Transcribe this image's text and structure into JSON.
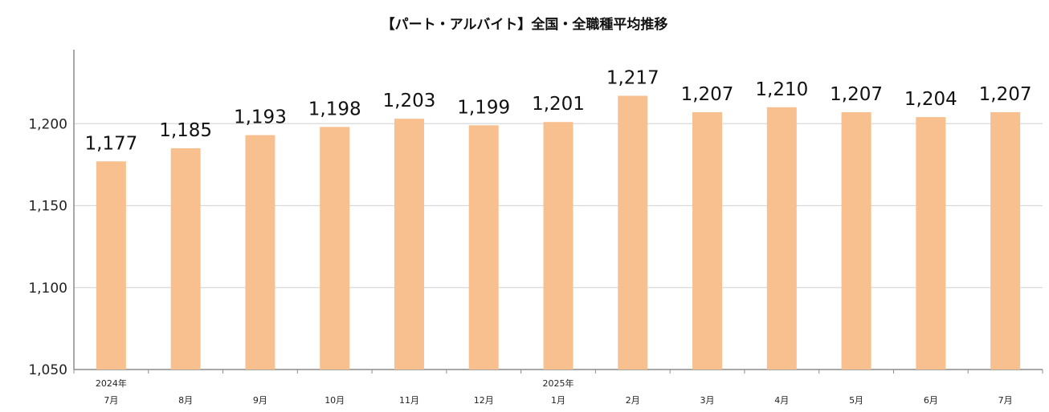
{
  "chart_data": {
    "type": "bar",
    "title": "【パート・アルバイト】全国・全職種平均推移",
    "xlabel": "",
    "ylabel": "",
    "categories": [
      {
        "year": "2024年",
        "month": "7月"
      },
      {
        "year": "",
        "month": "8月"
      },
      {
        "year": "",
        "month": "9月"
      },
      {
        "year": "",
        "month": "10月"
      },
      {
        "year": "",
        "month": "11月"
      },
      {
        "year": "",
        "month": "12月"
      },
      {
        "year": "2025年",
        "month": "1月"
      },
      {
        "year": "",
        "month": "2月"
      },
      {
        "year": "",
        "month": "3月"
      },
      {
        "year": "",
        "month": "4月"
      },
      {
        "year": "",
        "month": "5月"
      },
      {
        "year": "",
        "month": "6月"
      },
      {
        "year": "",
        "month": "7月"
      }
    ],
    "values": [
      1177,
      1185,
      1193,
      1198,
      1203,
      1199,
      1201,
      1217,
      1207,
      1210,
      1207,
      1204,
      1207
    ],
    "value_labels": [
      "1,177",
      "1,185",
      "1,193",
      "1,198",
      "1,203",
      "1,199",
      "1,201",
      "1,217",
      "1,207",
      "1,210",
      "1,207",
      "1,204",
      "1,207"
    ],
    "ylim": [
      1050,
      1250
    ],
    "yticks": [
      1050,
      1100,
      1150,
      1200
    ],
    "ytick_labels": [
      "1,050",
      "1,100",
      "1,150",
      "1,200"
    ],
    "grid": true,
    "legend": "none",
    "bar_color": "#F9C08F",
    "grid_color": "#D9D9D9"
  }
}
